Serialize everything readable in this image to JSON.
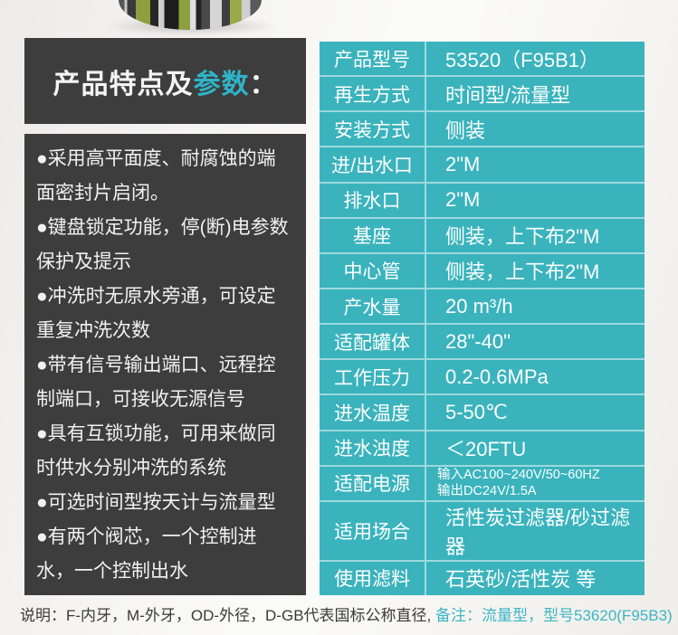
{
  "colors": {
    "teal_table": "#3ab3bd",
    "teal_accent": "#2fb4c8",
    "panel_dark": "#3d3d3d",
    "divider": "rgba(255,255,255,0.5)",
    "note_text": "#3a3a3a"
  },
  "product_image": {
    "name": "valve-bottom-photo"
  },
  "header": {
    "title_prefix": "产品特点及",
    "title_highlight": "参数",
    "title_suffix": "："
  },
  "features": [
    "●采用高平面度、耐腐蚀的端面密封片启闭。",
    "●键盘锁定功能，停(断)电参数保护及提示",
    "●冲洗时无原水旁通，可设定重复冲洗次数",
    "●带有信号输出端口、远程控制端口，可接收无源信号",
    "●具有互锁功能，可用来做同时供水分别冲洗的系统",
    "●可选时间型按天计与流量型",
    "●有两个阀芯，一个控制进水，一个控制出水"
  ],
  "spec_table": {
    "rows": [
      {
        "label": "产品型号",
        "value": "53520（F95B1）"
      },
      {
        "label": "再生方式",
        "value": "时间型/流量型"
      },
      {
        "label": "安装方式",
        "value": "侧装"
      },
      {
        "label": "进/出水口",
        "value": "2\"M"
      },
      {
        "label": "排水口",
        "value": "2\"M"
      },
      {
        "label": "基座",
        "value": "侧装，上下布2\"M"
      },
      {
        "label": "中心管",
        "value": "侧装，上下布2\"M"
      },
      {
        "label": "产水量",
        "value": "20 m³/h"
      },
      {
        "label": "适配罐体",
        "value": "28\"-40\""
      },
      {
        "label": "工作压力",
        "value": "0.2-0.6MPa"
      },
      {
        "label": "进水温度",
        "value": "5-50℃"
      },
      {
        "label": "进水浊度",
        "value": "＜20FTU"
      },
      {
        "label": "适配电源",
        "value_lines": [
          "输入AC100~240V/50~60HZ",
          "输出DC24V/1.5A"
        ]
      },
      {
        "label": "适用场合",
        "value": "活性炭过滤器/砂过滤器"
      },
      {
        "label": "使用滤料",
        "value": "石英砂/活性炭 等"
      }
    ]
  },
  "footnote": {
    "normal": "说明：F-内牙，M-外牙，OD-外径，D-GB代表国标公称直径,",
    "highlight": "备注：流量型，型号53620(F95B3)"
  }
}
